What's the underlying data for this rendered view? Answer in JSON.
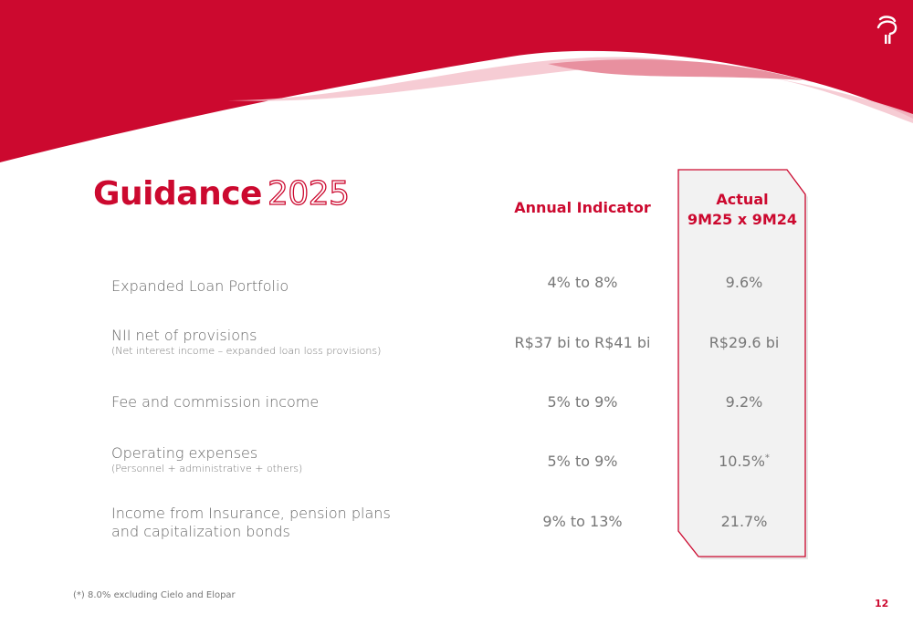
{
  "title": {
    "main": "Guidance",
    "year": "2025"
  },
  "headers": {
    "annual_indicator": "Annual Indicator",
    "actual_line1": "Actual",
    "actual_line2": "9M25 x 9M24"
  },
  "rows": [
    {
      "label": "Expanded Loan Portfolio",
      "sublabel": "",
      "indicator": "4% to 8%",
      "actual": "9.6%"
    },
    {
      "label": "NII net of provisions",
      "sublabel": "(Net interest income – expanded loan loss provisions)",
      "indicator": "R$37 bi to R$41 bi",
      "actual": "R$29.6 bi"
    },
    {
      "label": "Fee and commission income",
      "sublabel": "",
      "indicator": "5% to 9%",
      "actual": "9.2%"
    },
    {
      "label": "Operating expenses",
      "sublabel": "(Personnel + administrative + others)",
      "indicator": "5% to 9%",
      "actual": "10.5%",
      "actual_mark": "*"
    },
    {
      "label": "Income from Insurance, pension plans",
      "label2": "and capitalization bonds",
      "sublabel": "",
      "indicator": "9% to 13%",
      "actual": "21.7%"
    }
  ],
  "footnote": "(*) 8.0% excluding Cielo and Elopar",
  "page_number": "12",
  "colors": {
    "brand": "#cc092f",
    "box_fill": "#f2f2f2"
  },
  "logo_icon": "bradesco-tree-logo-icon"
}
